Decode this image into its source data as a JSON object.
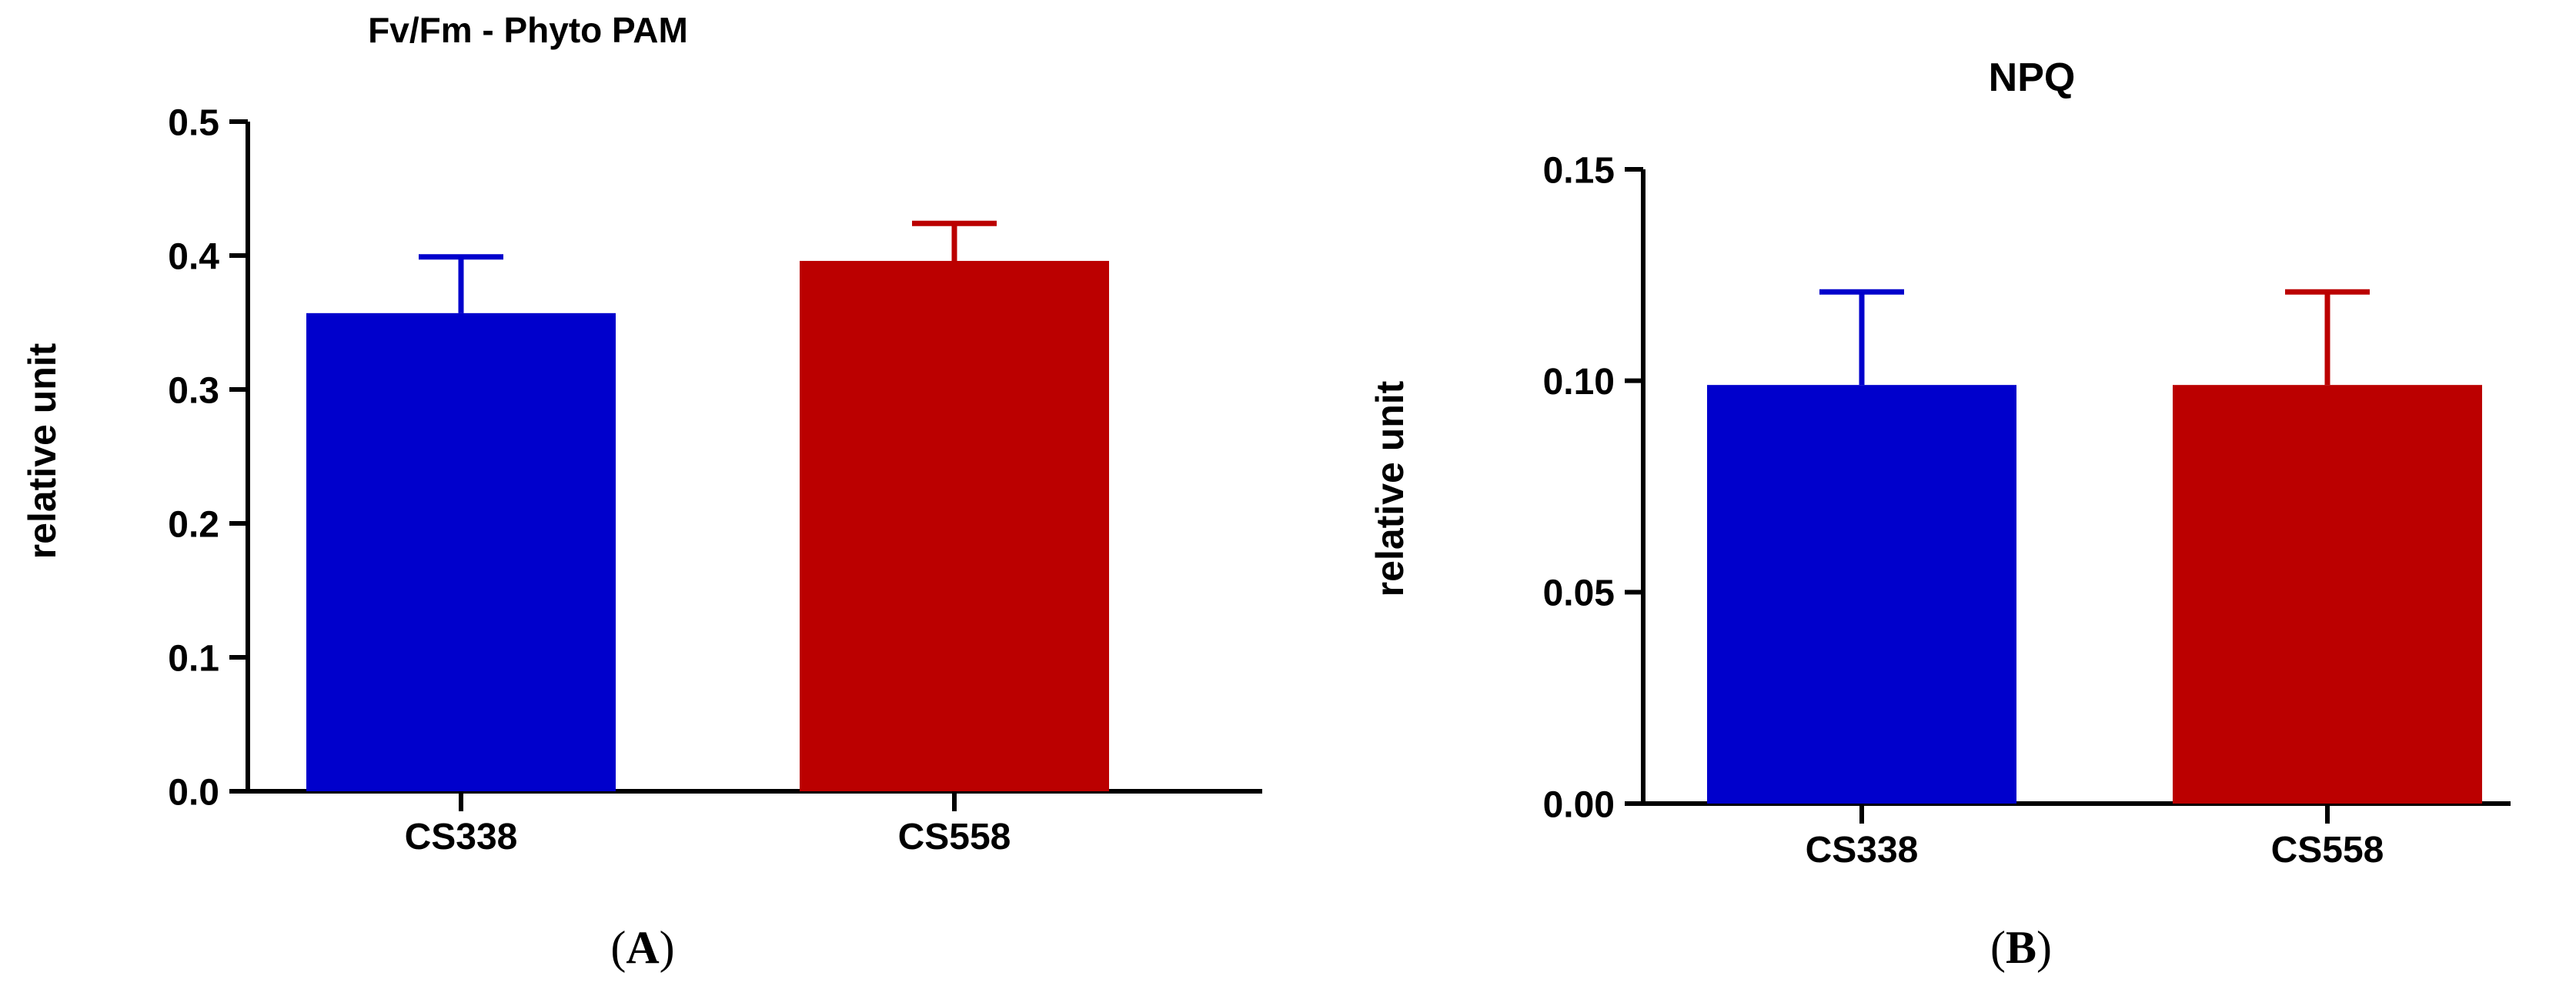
{
  "chart_data": [
    {
      "type": "bar",
      "title": "Fv/Fm - Phyto PAM",
      "xlabel": "",
      "ylabel": "relative unit",
      "categories": [
        "CS338",
        "CS558"
      ],
      "values": [
        0.357,
        0.396
      ],
      "error": [
        0.042,
        0.028
      ],
      "colors": [
        "#0000cc",
        "#bb0000"
      ],
      "ylim": [
        0,
        0.5
      ],
      "yticks": [
        "0.0",
        "0.1",
        "0.2",
        "0.3",
        "0.4",
        "0.5"
      ],
      "grid": false,
      "legend": "none",
      "panel_label": {
        "open": "(",
        "letter": "A",
        "close": ")"
      }
    },
    {
      "type": "bar",
      "title": "NPQ",
      "xlabel": "",
      "ylabel": "relative unit",
      "categories": [
        "CS338",
        "CS558"
      ],
      "values": [
        0.099,
        0.099
      ],
      "error": [
        0.022,
        0.022
      ],
      "colors": [
        "#0000cc",
        "#bb0000"
      ],
      "ylim": [
        0,
        0.15
      ],
      "yticks": [
        "0.00",
        "0.05",
        "0.10",
        "0.15"
      ],
      "grid": false,
      "legend": "none",
      "panel_label": {
        "open": "(",
        "letter": "B",
        "close": ")"
      }
    }
  ]
}
